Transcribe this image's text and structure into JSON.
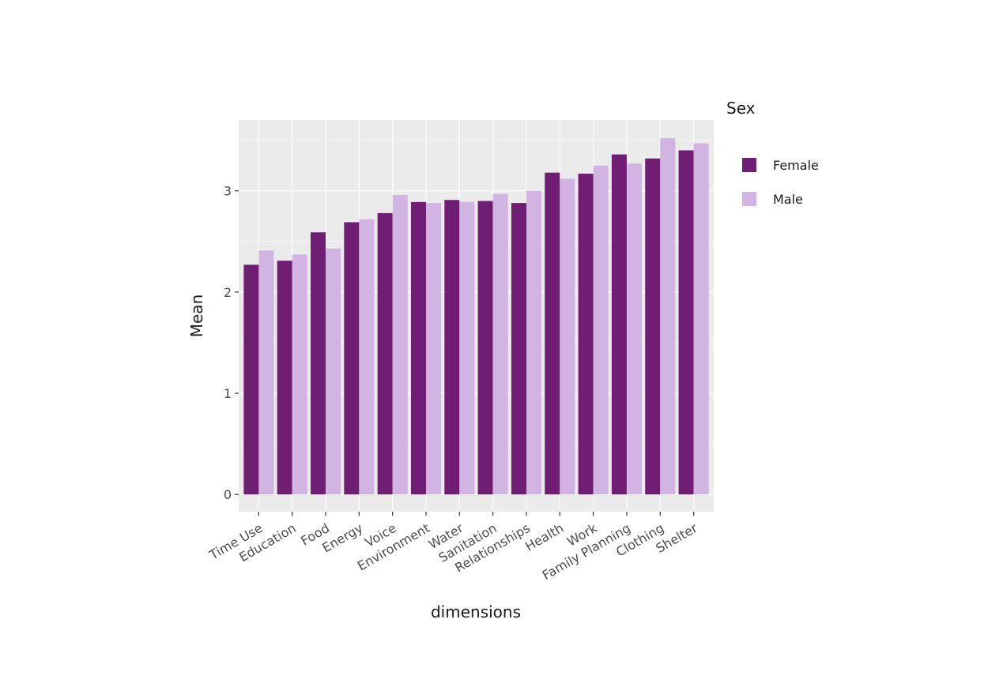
{
  "chart_data": {
    "type": "bar",
    "title": "",
    "xlabel": "dimensions",
    "ylabel": "Mean",
    "ylim": [
      -0.17,
      3.7
    ],
    "yticks": [
      0,
      1,
      2,
      3
    ],
    "grid": true,
    "legend_title": "Sex",
    "legend_position": "right",
    "categories": [
      "Time Use",
      "Education",
      "Food",
      "Energy",
      "Voice",
      "Environment",
      "Water",
      "Sanitation",
      "Relationships",
      "Health",
      "Work",
      "Family Planning",
      "Clothing",
      "Shelter"
    ],
    "series": [
      {
        "name": "Female",
        "color": "#701e73",
        "values": [
          2.27,
          2.31,
          2.59,
          2.69,
          2.78,
          2.89,
          2.91,
          2.9,
          2.88,
          3.18,
          3.17,
          3.36,
          3.32,
          3.4
        ]
      },
      {
        "name": "Male",
        "color": "#d2b4e2",
        "values": [
          2.41,
          2.37,
          2.43,
          2.72,
          2.96,
          2.88,
          2.89,
          2.97,
          3.0,
          3.12,
          3.25,
          3.27,
          3.52,
          3.47
        ]
      }
    ]
  }
}
